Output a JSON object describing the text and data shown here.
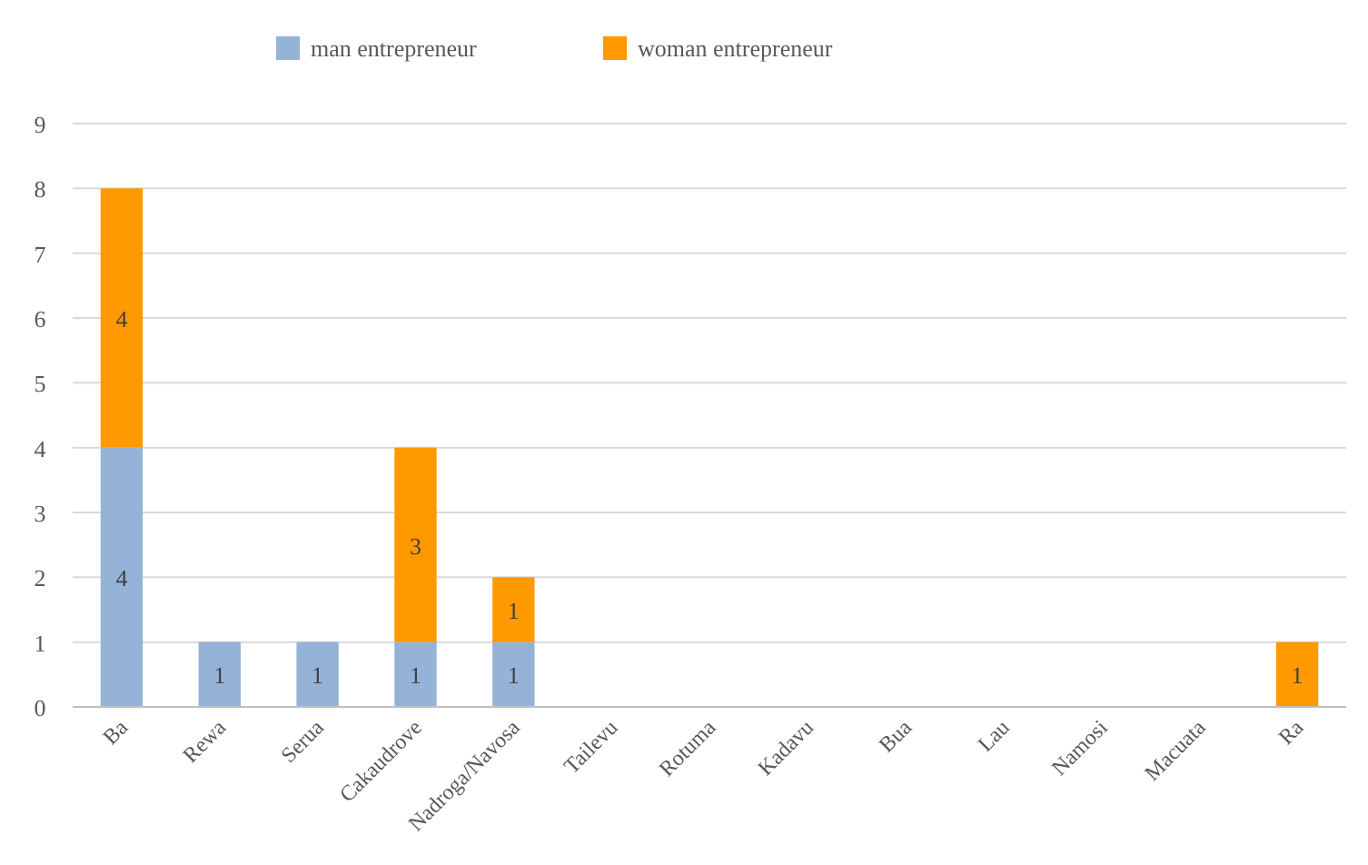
{
  "chart_data": {
    "type": "bar",
    "stacked": true,
    "categories": [
      "Ba",
      "Rewa",
      "Serua",
      "Cakaudrove",
      "Nadroga/Navosa",
      "Tailevu",
      "Rotuma",
      "Kadavu",
      "Bua",
      "Lau",
      "Namosi",
      "Macuata",
      "Ra"
    ],
    "series": [
      {
        "name": "man entrepreneur",
        "color": "#95b3d7",
        "values": [
          4,
          1,
          1,
          1,
          1,
          0,
          0,
          0,
          0,
          0,
          0,
          0,
          0
        ],
        "value_labels": [
          "4",
          "1",
          "1",
          "1",
          "1",
          null,
          null,
          null,
          null,
          null,
          null,
          null,
          null
        ]
      },
      {
        "name": "woman entrepreneur",
        "color": "#ff9900",
        "values": [
          4,
          0,
          0,
          3,
          1,
          0,
          0,
          0,
          0,
          0,
          0,
          0,
          1
        ],
        "value_labels": [
          "4",
          null,
          null,
          "3",
          "1",
          null,
          null,
          null,
          null,
          null,
          null,
          null,
          "1"
        ]
      }
    ],
    "ylim": [
      0,
      9
    ],
    "yticks": [
      0,
      1,
      2,
      3,
      4,
      5,
      6,
      7,
      8,
      9
    ],
    "grid": "y",
    "legend": "top"
  }
}
